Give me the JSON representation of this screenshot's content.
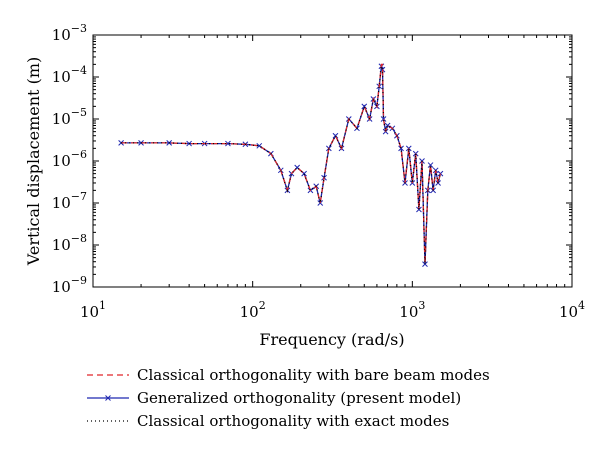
{
  "chart_data": {
    "type": "line",
    "title": "",
    "xlabel": "Frequency (rad/s)",
    "ylabel": "Vertical displacement (m)",
    "x_scale": "log",
    "y_scale": "log",
    "xlim": [
      10,
      10000
    ],
    "ylim": [
      1e-09,
      0.001
    ],
    "grid": false,
    "x_ticks": [
      {
        "value": 10,
        "base": "10",
        "exp": "1"
      },
      {
        "value": 100,
        "base": "10",
        "exp": "2"
      },
      {
        "value": 1000,
        "base": "10",
        "exp": "3"
      },
      {
        "value": 10000,
        "base": "10",
        "exp": "4"
      }
    ],
    "y_ticks": [
      {
        "value": 1e-09,
        "base": "10",
        "exp": "−9"
      },
      {
        "value": 1e-08,
        "base": "10",
        "exp": "−8"
      },
      {
        "value": 1e-07,
        "base": "10",
        "exp": "−7"
      },
      {
        "value": 1e-06,
        "base": "10",
        "exp": "−6"
      },
      {
        "value": 1e-05,
        "base": "10",
        "exp": "−5"
      },
      {
        "value": 0.0001,
        "base": "10",
        "exp": "−4"
      },
      {
        "value": 0.001,
        "base": "10",
        "exp": "−3"
      }
    ],
    "legend_position": "bottom",
    "series": [
      {
        "name": "Classical orthogonality with bare beam modes",
        "color": "#e0262b",
        "dash": "dashed",
        "marker": "none",
        "x": [
          15,
          20,
          30,
          40,
          50,
          70,
          90,
          110,
          130,
          150,
          165,
          175,
          190,
          210,
          230,
          250,
          265,
          280,
          300,
          330,
          360,
          400,
          450,
          500,
          540,
          570,
          600,
          620,
          640,
          650,
          660,
          680,
          700,
          750,
          800,
          850,
          900,
          950,
          1000,
          1050,
          1100,
          1150,
          1200,
          1250,
          1300,
          1350,
          1400,
          1450,
          1500
        ],
        "y": [
          2.7e-06,
          2.7e-06,
          2.7e-06,
          2.6e-06,
          2.6e-06,
          2.6e-06,
          2.5e-06,
          2.3e-06,
          1.5e-06,
          6e-07,
          2e-07,
          5e-07,
          7e-07,
          5e-07,
          2e-07,
          2.5e-07,
          1e-07,
          4e-07,
          2e-06,
          4e-06,
          2e-06,
          1e-05,
          6e-06,
          2e-05,
          1e-05,
          3e-05,
          2e-05,
          6e-05,
          0.0002,
          0.0002,
          1e-05,
          5e-06,
          7e-06,
          6e-06,
          4e-06,
          2e-06,
          3e-07,
          2e-06,
          3e-07,
          1.5e-06,
          7e-08,
          1e-06,
          3.5e-09,
          2e-07,
          8e-07,
          2e-07,
          6e-07,
          3e-07,
          5e-07
        ]
      },
      {
        "name": "Generalized orthogonality (present model)",
        "color": "#1f27b0",
        "dash": "solid",
        "marker": "x",
        "x": [
          15,
          20,
          30,
          40,
          50,
          70,
          90,
          110,
          130,
          150,
          165,
          175,
          190,
          210,
          230,
          250,
          265,
          280,
          300,
          330,
          360,
          400,
          450,
          500,
          540,
          570,
          600,
          620,
          640,
          650,
          660,
          680,
          700,
          750,
          800,
          850,
          900,
          950,
          1000,
          1050,
          1100,
          1150,
          1200,
          1250,
          1300,
          1350,
          1400,
          1450,
          1500
        ],
        "y": [
          2.7e-06,
          2.7e-06,
          2.7e-06,
          2.6e-06,
          2.6e-06,
          2.6e-06,
          2.5e-06,
          2.3e-06,
          1.5e-06,
          6e-07,
          2e-07,
          5e-07,
          7e-07,
          5e-07,
          2e-07,
          2.5e-07,
          1e-07,
          4e-07,
          2e-06,
          4e-06,
          2e-06,
          1e-05,
          6e-06,
          2e-05,
          1e-05,
          3e-05,
          2e-05,
          6e-05,
          0.00018,
          0.00015,
          1e-05,
          5e-06,
          7e-06,
          6e-06,
          4e-06,
          2e-06,
          3e-07,
          2e-06,
          3e-07,
          1.5e-06,
          7e-08,
          1e-06,
          3.5e-09,
          2e-07,
          8e-07,
          2e-07,
          6e-07,
          3e-07,
          5e-07
        ]
      },
      {
        "name": "Classical orthogonality with exact modes",
        "color": "#000000",
        "dash": "dotted",
        "marker": "none",
        "x": [
          15,
          20,
          30,
          40,
          50,
          70,
          90,
          110,
          130,
          150,
          165,
          175,
          190,
          210,
          230,
          250,
          265,
          280,
          300,
          330,
          360,
          400,
          450,
          500,
          540,
          570,
          600,
          620,
          640,
          650,
          660,
          680,
          700,
          750,
          800,
          850,
          900,
          950,
          1000,
          1050,
          1100,
          1150,
          1200,
          1250,
          1300,
          1350,
          1400,
          1450,
          1500
        ],
        "y": [
          2.7e-06,
          2.7e-06,
          2.7e-06,
          2.6e-06,
          2.6e-06,
          2.6e-06,
          2.5e-06,
          2.3e-06,
          1.5e-06,
          6e-07,
          2e-07,
          5e-07,
          7e-07,
          5e-07,
          2e-07,
          2.5e-07,
          1e-07,
          4e-07,
          2e-06,
          4e-06,
          2e-06,
          1e-05,
          6e-06,
          2e-05,
          1e-05,
          3e-05,
          2e-05,
          6e-05,
          0.00018,
          0.00015,
          1e-05,
          5e-06,
          7e-06,
          6e-06,
          4e-06,
          2e-06,
          3e-07,
          2e-06,
          3e-07,
          1.5e-06,
          7e-08,
          1e-06,
          3.5e-09,
          2e-07,
          8e-07,
          2e-07,
          6e-07,
          3e-07,
          5e-07
        ]
      }
    ]
  }
}
